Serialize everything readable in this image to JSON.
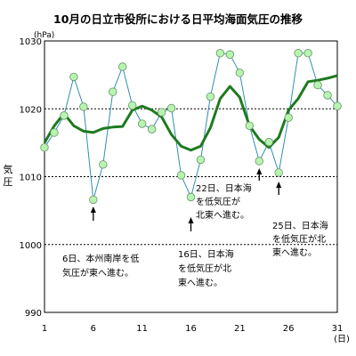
{
  "chart_data": {
    "type": "line",
    "title": "10月の日立市役所における日平均海面気圧の推移",
    "unit": "(hPa)",
    "ylabel": "気圧",
    "x_unit": "(日)",
    "ylim": [
      990,
      1030
    ],
    "y_ticks": [
      "990",
      "1000",
      "1010",
      "1020",
      "1030"
    ],
    "y_dashed": [
      1000,
      1010,
      1020
    ],
    "x_ticks": [
      "1",
      "6",
      "11",
      "16",
      "21",
      "26",
      "31"
    ],
    "xlim": [
      1,
      31
    ],
    "series": [
      {
        "values": [
          [
            1,
            1014.3
          ],
          [
            2,
            1016.5
          ],
          [
            3,
            1019
          ],
          [
            4,
            1024.7
          ],
          [
            5,
            1020.3
          ],
          [
            6,
            1006.6
          ],
          [
            7,
            1011.8
          ],
          [
            8,
            1022.5
          ],
          [
            9,
            1026.2
          ],
          [
            10,
            1020.5
          ],
          [
            11,
            1017.8
          ],
          [
            12,
            1017
          ],
          [
            13,
            1019.5
          ],
          [
            14,
            1020.1
          ],
          [
            15,
            1010.2
          ],
          [
            16,
            1007
          ],
          [
            17,
            1012.5
          ],
          [
            18,
            1021.8
          ],
          [
            19,
            1028.2
          ],
          [
            20,
            1028
          ],
          [
            21,
            1025.3
          ],
          [
            22,
            1017.5
          ],
          [
            23,
            1012.3
          ],
          [
            24,
            1015.1
          ],
          [
            25,
            1010.6
          ],
          [
            26,
            1018.7
          ],
          [
            27,
            1028.2
          ],
          [
            28,
            1028.2
          ],
          [
            29,
            1023.5
          ],
          [
            30,
            1022
          ],
          [
            31,
            1020.4
          ]
        ]
      },
      {
        "values": [
          [
            1,
            1015
          ],
          [
            2,
            1017.5
          ],
          [
            3,
            1019.3
          ],
          [
            4,
            1017.5
          ],
          [
            5,
            1016.7
          ],
          [
            6,
            1016.5
          ],
          [
            7,
            1017.1
          ],
          [
            8,
            1017.3
          ],
          [
            9,
            1017.4
          ],
          [
            10,
            1019.8
          ],
          [
            11,
            1020.4
          ],
          [
            12,
            1019.8
          ],
          [
            13,
            1018.8
          ],
          [
            14,
            1016.2
          ],
          [
            15,
            1014.5
          ],
          [
            16,
            1013.9
          ],
          [
            17,
            1014.5
          ],
          [
            18,
            1017.2
          ],
          [
            19,
            1021.5
          ],
          [
            20,
            1023.3
          ],
          [
            21,
            1021.7
          ],
          [
            22,
            1017.5
          ],
          [
            23,
            1015.5
          ],
          [
            24,
            1014.3
          ],
          [
            25,
            1015.8
          ],
          [
            26,
            1019.8
          ],
          [
            27,
            1021.5
          ],
          [
            28,
            1024
          ],
          [
            29,
            1024.2
          ],
          [
            30,
            1024.5
          ],
          [
            31,
            1024.9
          ]
        ]
      }
    ],
    "annotations": [
      {
        "lines": [
          "6日、本州南岸を低",
          "気圧が東へ進む。"
        ],
        "arrow_day": 6
      },
      {
        "lines": [
          "16日、日本海",
          "を低気圧が北",
          "東へ進む。"
        ],
        "arrow_day": 16
      },
      {
        "lines": [
          "22日、日本海",
          "を低気圧が",
          "北東へ進む。"
        ],
        "arrow_day": 23
      },
      {
        "lines": [
          "25日、日本海",
          "を低気圧が北",
          "東へ進む。"
        ],
        "arrow_day": 25
      }
    ],
    "colors": {
      "daily": "#2f8fb0",
      "marker_fill": "#b6f5b0",
      "marker_stroke": "#6a8f6a",
      "smooth": "#1e7a1e"
    }
  }
}
